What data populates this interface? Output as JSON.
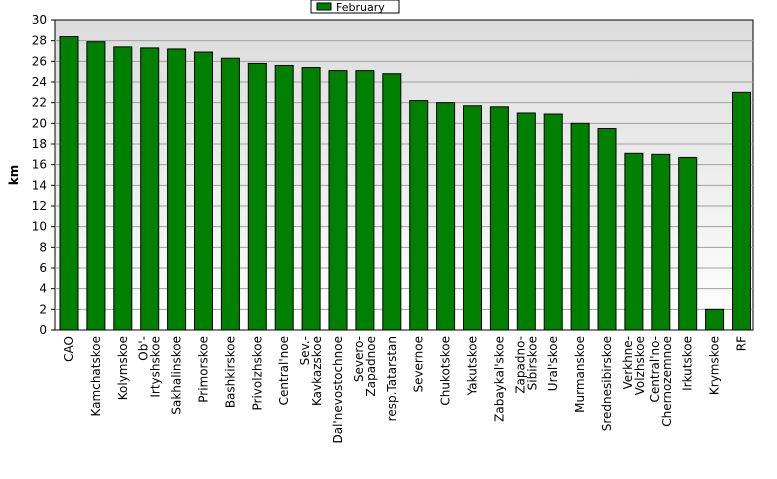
{
  "chart_data": {
    "type": "bar",
    "ylabel": "km",
    "ylim": [
      0,
      30
    ],
    "yticks": [
      0,
      2,
      4,
      6,
      8,
      10,
      12,
      14,
      16,
      18,
      20,
      22,
      24,
      26,
      28,
      30
    ],
    "grid": true,
    "legend_position": "top-center",
    "series": [
      {
        "name": "February",
        "color": "#008000",
        "values": [
          28.4,
          27.9,
          27.4,
          27.3,
          27.2,
          26.9,
          26.3,
          25.8,
          25.6,
          25.4,
          25.1,
          25.1,
          24.8,
          22.2,
          22.0,
          21.7,
          21.6,
          21.0,
          20.9,
          20.0,
          19.5,
          17.1,
          17.0,
          16.7,
          2.0,
          23.0
        ]
      }
    ],
    "categories": [
      "CAO",
      "Kamchatskoe",
      "Kolymskoe",
      "Ob'-Irtyshskoe",
      "Sakhalinskoe",
      "Primorskoe",
      "Bashkirskoe",
      "Privolzhskoe",
      "Central'noe",
      "Sev.-Kavkazskoe",
      "Dal'nevostochnoe",
      "Severo-Zapadnoe",
      "resp.Tatarstan",
      "Severnoe",
      "Chukotskoe",
      "Yakutskoe",
      "Zabaykal'skoe",
      "Zapadno-Sibirskoe",
      "Ural'skoe",
      "Murmanskoe",
      "Srednesibirskoe",
      "Verkhne-Volzhskoe",
      "Central'no-Chernozemnoe",
      "Irkutskoe",
      "Krymskoe",
      "RF"
    ],
    "category_lines": [
      [
        "CAO"
      ],
      [
        "Kamchatskoe"
      ],
      [
        "Kolymskoe"
      ],
      [
        "Ob'-",
        "Irtyshskoe"
      ],
      [
        "Sakhalinskoe"
      ],
      [
        "Primorskoe"
      ],
      [
        "Bashkirskoe"
      ],
      [
        "Privolzhskoe"
      ],
      [
        "Central'noe"
      ],
      [
        "Sev.-",
        "Kavkazskoe"
      ],
      [
        "Dal'nevostochnoe"
      ],
      [
        "Severo-",
        "Zapadnoe"
      ],
      [
        "resp.Tatarstan"
      ],
      [
        "Severnoe"
      ],
      [
        "Chukotskoe"
      ],
      [
        "Yakutskoe"
      ],
      [
        "Zabaykal'skoe"
      ],
      [
        "Zapadno-",
        "Sibirskoe"
      ],
      [
        "Ural'skoe"
      ],
      [
        "Murmanskoe"
      ],
      [
        "Srednesibirskoe"
      ],
      [
        "Verkhne-",
        "Volzhskoe"
      ],
      [
        "Central'no-",
        "Chernozemnoe"
      ],
      [
        "Irkutskoe"
      ],
      [
        "Krymskoe"
      ],
      [
        "RF"
      ]
    ]
  }
}
